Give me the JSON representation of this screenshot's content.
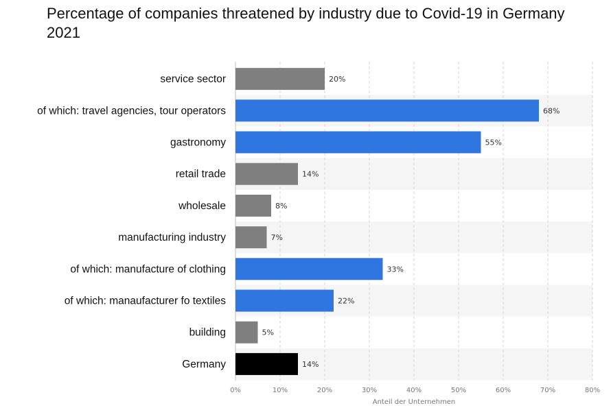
{
  "chart_data": {
    "type": "bar",
    "orientation": "horizontal",
    "title": "Percentage of companies threatened by industry due to Covid-19 in Germany 2021",
    "xlabel": "Anteil der Unternehmen",
    "ylabel": "",
    "xlim": [
      0,
      80
    ],
    "x_ticks": [
      "0%",
      "10%",
      "20%",
      "30%",
      "40%",
      "50%",
      "60%",
      "70%",
      "80%"
    ],
    "grid": "vertical-dashed",
    "categories": [
      "service sector",
      "of which: travel agencies, tour operators",
      "gastronomy",
      "retail trade",
      "wholesale",
      "manufacturing industry",
      "of which: manufacture of clothing",
      "of which: manaufacturer fo textiles",
      "building",
      "Germany"
    ],
    "values": [
      20,
      68,
      55,
      14,
      8,
      7,
      33,
      22,
      5,
      14
    ],
    "value_labels": [
      "20%",
      "68%",
      "55%",
      "14%",
      "8%",
      "7%",
      "33%",
      "22%",
      "5%",
      "14%"
    ],
    "bar_colors": [
      "#7f7f7f",
      "#2f76e0",
      "#2f76e0",
      "#7f7f7f",
      "#7f7f7f",
      "#7f7f7f",
      "#2f76e0",
      "#2f76e0",
      "#7f7f7f",
      "#000000"
    ],
    "band_color": "#f5f5f5"
  }
}
